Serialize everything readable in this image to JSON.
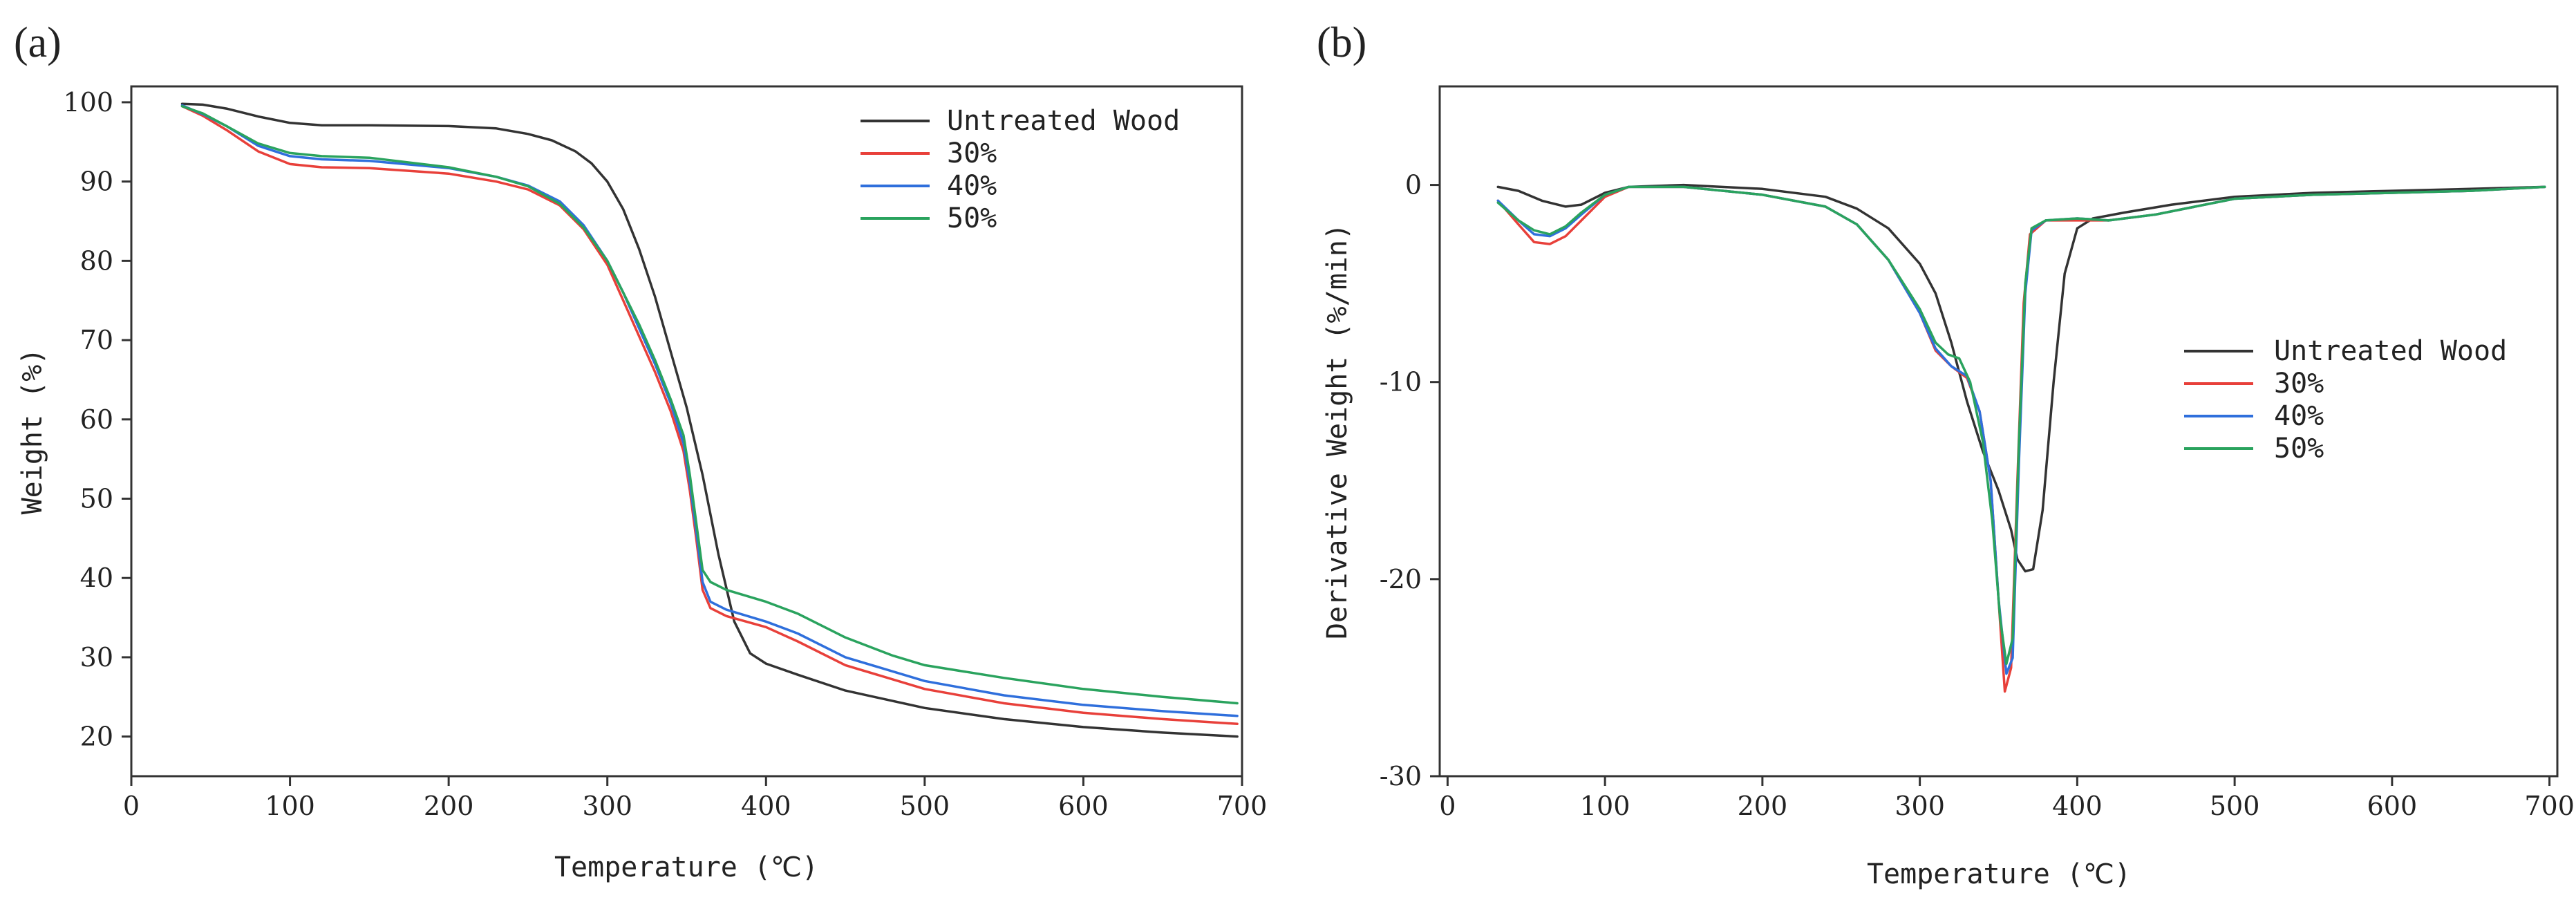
{
  "chart_data": [
    {
      "type": "line",
      "panel_label": "(a)",
      "title": "",
      "xlabel": "Temperature (℃)",
      "ylabel": "Weight (%)",
      "xlim": [
        0,
        700
      ],
      "ylim": [
        15,
        102
      ],
      "xticks": [
        0,
        100,
        200,
        300,
        400,
        500,
        600,
        700
      ],
      "yticks": [
        20,
        30,
        40,
        50,
        60,
        70,
        80,
        90,
        100
      ],
      "grid": false,
      "legend_position": "top-right",
      "series": [
        {
          "name": "Untreated Wood",
          "color": "#333333",
          "points": [
            [
              32,
              99.8
            ],
            [
              45,
              99.7
            ],
            [
              60,
              99.2
            ],
            [
              80,
              98.2
            ],
            [
              100,
              97.4
            ],
            [
              120,
              97.1
            ],
            [
              150,
              97.1
            ],
            [
              200,
              97.0
            ],
            [
              230,
              96.7
            ],
            [
              250,
              96.0
            ],
            [
              265,
              95.2
            ],
            [
              280,
              93.8
            ],
            [
              290,
              92.3
            ],
            [
              300,
              90.0
            ],
            [
              310,
              86.5
            ],
            [
              320,
              81.5
            ],
            [
              330,
              75.5
            ],
            [
              340,
              68.5
            ],
            [
              350,
              61.5
            ],
            [
              360,
              53.0
            ],
            [
              370,
              43.0
            ],
            [
              380,
              34.5
            ],
            [
              390,
              30.5
            ],
            [
              400,
              29.2
            ],
            [
              420,
              27.8
            ],
            [
              450,
              25.8
            ],
            [
              500,
              23.6
            ],
            [
              550,
              22.2
            ],
            [
              600,
              21.2
            ],
            [
              650,
              20.5
            ],
            [
              697,
              20.0
            ]
          ]
        },
        {
          "name": "30%",
          "color": "#e8403a",
          "points": [
            [
              32,
              99.5
            ],
            [
              45,
              98.3
            ],
            [
              60,
              96.5
            ],
            [
              80,
              93.8
            ],
            [
              100,
              92.2
            ],
            [
              120,
              91.8
            ],
            [
              150,
              91.7
            ],
            [
              200,
              91.0
            ],
            [
              230,
              90.0
            ],
            [
              250,
              89.0
            ],
            [
              270,
              87.0
            ],
            [
              285,
              84.0
            ],
            [
              300,
              79.5
            ],
            [
              310,
              75.0
            ],
            [
              320,
              70.5
            ],
            [
              330,
              66.0
            ],
            [
              340,
              61.0
            ],
            [
              348,
              56.0
            ],
            [
              352,
              51.0
            ],
            [
              356,
              45.0
            ],
            [
              360,
              38.5
            ],
            [
              365,
              36.2
            ],
            [
              375,
              35.2
            ],
            [
              400,
              33.8
            ],
            [
              420,
              32.0
            ],
            [
              450,
              29.0
            ],
            [
              500,
              26.0
            ],
            [
              550,
              24.2
            ],
            [
              600,
              23.0
            ],
            [
              650,
              22.2
            ],
            [
              697,
              21.6
            ]
          ]
        },
        {
          "name": "40%",
          "color": "#2f6fdc",
          "points": [
            [
              32,
              99.6
            ],
            [
              45,
              98.5
            ],
            [
              60,
              97.0
            ],
            [
              80,
              94.5
            ],
            [
              100,
              93.2
            ],
            [
              120,
              92.8
            ],
            [
              150,
              92.6
            ],
            [
              200,
              91.7
            ],
            [
              230,
              90.6
            ],
            [
              250,
              89.5
            ],
            [
              270,
              87.5
            ],
            [
              285,
              84.5
            ],
            [
              300,
              80.0
            ],
            [
              310,
              76.0
            ],
            [
              320,
              71.5
            ],
            [
              330,
              67.0
            ],
            [
              340,
              62.0
            ],
            [
              348,
              57.0
            ],
            [
              352,
              52.0
            ],
            [
              356,
              46.0
            ],
            [
              360,
              39.5
            ],
            [
              365,
              37.0
            ],
            [
              375,
              36.0
            ],
            [
              400,
              34.5
            ],
            [
              420,
              33.0
            ],
            [
              450,
              30.0
            ],
            [
              500,
              27.0
            ],
            [
              550,
              25.2
            ],
            [
              600,
              24.0
            ],
            [
              650,
              23.2
            ],
            [
              697,
              22.6
            ]
          ]
        },
        {
          "name": "50%",
          "color": "#2aa35e",
          "points": [
            [
              32,
              99.5
            ],
            [
              45,
              98.6
            ],
            [
              60,
              97.0
            ],
            [
              80,
              94.8
            ],
            [
              100,
              93.6
            ],
            [
              120,
              93.2
            ],
            [
              150,
              93.0
            ],
            [
              200,
              91.8
            ],
            [
              230,
              90.6
            ],
            [
              250,
              89.4
            ],
            [
              270,
              87.2
            ],
            [
              285,
              84.2
            ],
            [
              300,
              80.0
            ],
            [
              310,
              76.0
            ],
            [
              320,
              72.0
            ],
            [
              330,
              67.5
            ],
            [
              340,
              62.5
            ],
            [
              348,
              58.0
            ],
            [
              352,
              53.0
            ],
            [
              356,
              47.0
            ],
            [
              360,
              41.0
            ],
            [
              365,
              39.5
            ],
            [
              375,
              38.5
            ],
            [
              400,
              37.0
            ],
            [
              420,
              35.5
            ],
            [
              450,
              32.5
            ],
            [
              480,
              30.2
            ],
            [
              500,
              29.0
            ],
            [
              550,
              27.4
            ],
            [
              600,
              26.0
            ],
            [
              650,
              25.0
            ],
            [
              697,
              24.2
            ]
          ]
        }
      ]
    },
    {
      "type": "line",
      "panel_label": "(b)",
      "title": "",
      "xlabel": "Temperature (℃)",
      "ylabel": "Derivative Weight (%/min)",
      "xlim": [
        -5,
        705
      ],
      "ylim": [
        -30,
        5
      ],
      "xticks": [
        0,
        100,
        200,
        300,
        400,
        500,
        600,
        700
      ],
      "yticks": [
        0,
        -10,
        -20,
        -30
      ],
      "grid": false,
      "legend_position": "center-right",
      "series": [
        {
          "name": "Untreated Wood",
          "color": "#333333",
          "points": [
            [
              32,
              -0.1
            ],
            [
              45,
              -0.3
            ],
            [
              60,
              -0.8
            ],
            [
              75,
              -1.1
            ],
            [
              85,
              -1.0
            ],
            [
              100,
              -0.4
            ],
            [
              115,
              -0.1
            ],
            [
              150,
              0.0
            ],
            [
              200,
              -0.2
            ],
            [
              240,
              -0.6
            ],
            [
              260,
              -1.2
            ],
            [
              280,
              -2.2
            ],
            [
              300,
              -4.0
            ],
            [
              310,
              -5.5
            ],
            [
              320,
              -8.0
            ],
            [
              330,
              -11.0
            ],
            [
              340,
              -13.5
            ],
            [
              350,
              -15.5
            ],
            [
              358,
              -17.5
            ],
            [
              362,
              -19.0
            ],
            [
              367,
              -19.6
            ],
            [
              372,
              -19.5
            ],
            [
              378,
              -16.5
            ],
            [
              385,
              -10.0
            ],
            [
              392,
              -4.5
            ],
            [
              400,
              -2.2
            ],
            [
              410,
              -1.7
            ],
            [
              430,
              -1.4
            ],
            [
              460,
              -1.0
            ],
            [
              500,
              -0.6
            ],
            [
              550,
              -0.4
            ],
            [
              600,
              -0.3
            ],
            [
              650,
              -0.2
            ],
            [
              697,
              -0.1
            ]
          ]
        },
        {
          "name": "30%",
          "color": "#e8403a",
          "points": [
            [
              32,
              -0.8
            ],
            [
              45,
              -2.0
            ],
            [
              55,
              -2.9
            ],
            [
              65,
              -3.0
            ],
            [
              75,
              -2.6
            ],
            [
              85,
              -1.8
            ],
            [
              100,
              -0.6
            ],
            [
              115,
              -0.1
            ],
            [
              150,
              -0.1
            ],
            [
              200,
              -0.5
            ],
            [
              240,
              -1.1
            ],
            [
              260,
              -2.0
            ],
            [
              280,
              -3.8
            ],
            [
              300,
              -6.5
            ],
            [
              310,
              -8.4
            ],
            [
              320,
              -9.2
            ],
            [
              330,
              -9.8
            ],
            [
              338,
              -11.5
            ],
            [
              345,
              -15.0
            ],
            [
              350,
              -21.0
            ],
            [
              354,
              -25.7
            ],
            [
              358,
              -24.5
            ],
            [
              362,
              -15.0
            ],
            [
              366,
              -6.0
            ],
            [
              370,
              -2.5
            ],
            [
              380,
              -1.8
            ],
            [
              400,
              -1.8
            ],
            [
              420,
              -1.8
            ],
            [
              450,
              -1.5
            ],
            [
              500,
              -0.7
            ],
            [
              550,
              -0.5
            ],
            [
              600,
              -0.4
            ],
            [
              650,
              -0.3
            ],
            [
              697,
              -0.1
            ]
          ]
        },
        {
          "name": "40%",
          "color": "#2f6fdc",
          "points": [
            [
              32,
              -0.8
            ],
            [
              45,
              -1.8
            ],
            [
              55,
              -2.5
            ],
            [
              65,
              -2.6
            ],
            [
              75,
              -2.2
            ],
            [
              85,
              -1.5
            ],
            [
              100,
              -0.5
            ],
            [
              115,
              -0.1
            ],
            [
              150,
              -0.1
            ],
            [
              200,
              -0.5
            ],
            [
              240,
              -1.1
            ],
            [
              260,
              -2.0
            ],
            [
              280,
              -3.8
            ],
            [
              300,
              -6.5
            ],
            [
              310,
              -8.3
            ],
            [
              320,
              -9.2
            ],
            [
              330,
              -9.7
            ],
            [
              338,
              -11.5
            ],
            [
              345,
              -15.0
            ],
            [
              350,
              -21.0
            ],
            [
              355,
              -24.8
            ],
            [
              359,
              -24.0
            ],
            [
              363,
              -14.0
            ],
            [
              367,
              -5.5
            ],
            [
              371,
              -2.3
            ],
            [
              380,
              -1.8
            ],
            [
              400,
              -1.7
            ],
            [
              420,
              -1.8
            ],
            [
              450,
              -1.5
            ],
            [
              500,
              -0.7
            ],
            [
              550,
              -0.5
            ],
            [
              600,
              -0.4
            ],
            [
              650,
              -0.3
            ],
            [
              697,
              -0.1
            ]
          ]
        },
        {
          "name": "50%",
          "color": "#2aa35e",
          "points": [
            [
              32,
              -0.9
            ],
            [
              45,
              -1.8
            ],
            [
              55,
              -2.3
            ],
            [
              65,
              -2.5
            ],
            [
              75,
              -2.1
            ],
            [
              85,
              -1.4
            ],
            [
              100,
              -0.5
            ],
            [
              115,
              -0.1
            ],
            [
              150,
              -0.1
            ],
            [
              200,
              -0.5
            ],
            [
              240,
              -1.1
            ],
            [
              260,
              -2.0
            ],
            [
              280,
              -3.8
            ],
            [
              300,
              -6.3
            ],
            [
              310,
              -8.0
            ],
            [
              318,
              -8.6
            ],
            [
              325,
              -8.8
            ],
            [
              332,
              -10.0
            ],
            [
              340,
              -13.0
            ],
            [
              346,
              -17.0
            ],
            [
              351,
              -22.0
            ],
            [
              355,
              -24.3
            ],
            [
              359,
              -23.0
            ],
            [
              363,
              -13.0
            ],
            [
              367,
              -5.0
            ],
            [
              371,
              -2.2
            ],
            [
              380,
              -1.8
            ],
            [
              400,
              -1.7
            ],
            [
              420,
              -1.8
            ],
            [
              450,
              -1.5
            ],
            [
              500,
              -0.7
            ],
            [
              550,
              -0.5
            ],
            [
              600,
              -0.4
            ],
            [
              650,
              -0.3
            ],
            [
              697,
              -0.1
            ]
          ]
        }
      ]
    }
  ]
}
